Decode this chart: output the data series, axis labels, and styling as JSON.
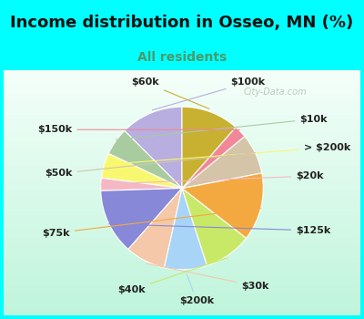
{
  "title": "Income distribution in Osseo, MN (%)",
  "subtitle": "All residents",
  "title_fontsize": 13,
  "subtitle_fontsize": 10,
  "title_color": "#111111",
  "subtitle_color": "#4a9a6a",
  "bg_cyan": "#00ffff",
  "bg_chart_top": "#f0faf8",
  "bg_chart_bottom": "#c8f0dc",
  "watermark": "City-Data.com",
  "labels": [
    "$100k",
    "$10k",
    "> $200k",
    "$20k",
    "$125k",
    "$30k",
    "$200k",
    "$40k",
    "$75k",
    "$50k",
    "$150k",
    "$60k"
  ],
  "values": [
    12.5,
    5.5,
    5.0,
    2.5,
    13.0,
    8.0,
    8.5,
    9.5,
    13.5,
    8.0,
    2.5,
    11.5
  ],
  "colors": [
    "#b8aee0",
    "#a8cca0",
    "#f8f870",
    "#f4b8c4",
    "#8888d8",
    "#f4c8a8",
    "#a8d4f8",
    "#c8e868",
    "#f4a840",
    "#d4c4a8",
    "#f08898",
    "#c8b030"
  ],
  "startangle": 90,
  "label_fontsize": 8,
  "label_color": "#222222",
  "line_color": "#aaaaaa"
}
